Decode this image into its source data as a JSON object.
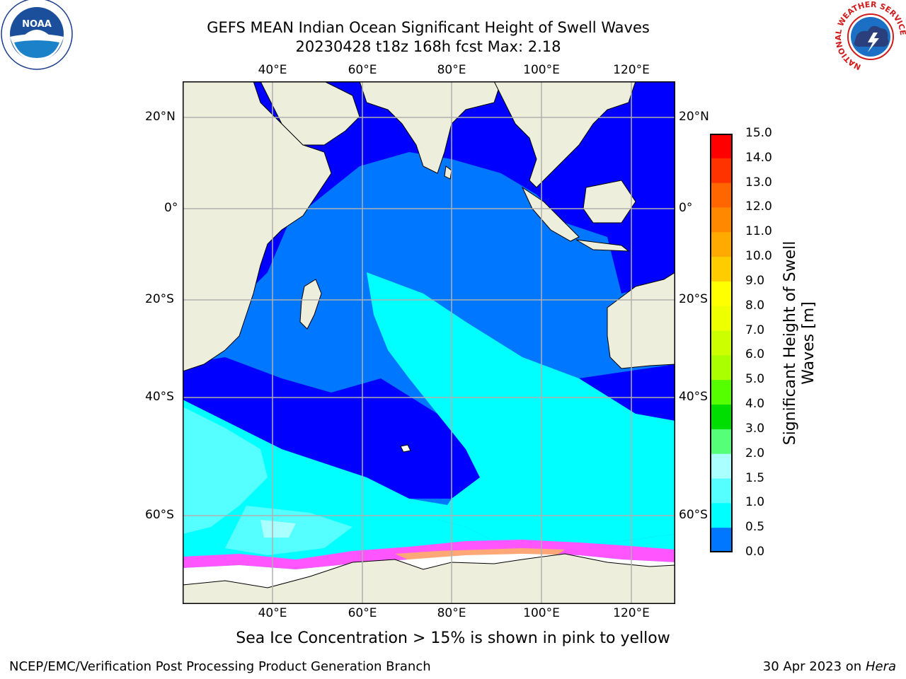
{
  "title": {
    "line1": "GEFS MEAN Indian Ocean Significant Height of Swell Waves",
    "line2": "20230428 t18z 168h fcst   Max: 2.18"
  },
  "logos": {
    "left": {
      "name": "noaa-logo",
      "text": "NOAA",
      "ring_text": "NATIONAL OCEANIC AND ATMOSPHERIC ADMINISTRATION · U.S. DEPARTMENT OF COMMERCE"
    },
    "right": {
      "name": "nws-logo",
      "ring_text": "NATIONAL WEATHER SERVICE"
    }
  },
  "map": {
    "lon_labels": [
      "40°E",
      "60°E",
      "80°E",
      "100°E",
      "120°E"
    ],
    "lat_labels_left": [
      "20°N",
      "0°",
      "20°S",
      "40°S",
      "60°S"
    ],
    "lat_labels_right": [
      "20°N",
      "0°",
      "20°S",
      "40°S",
      "60°S"
    ],
    "colors": {
      "land": "#eeeedd",
      "band_0_0_5": "#0000ff",
      "band_0_5_1_0": "#0077ff",
      "band_1_0_1_5": "#00ffff",
      "band_1_5_2_0": "#55ffff",
      "band_2_0_3_0": "#aaffff",
      "ice_pink": "#ff55ff",
      "ice_orange": "#ffbb55",
      "ice_white": "#ffffff",
      "grid": "#b0b0b0"
    }
  },
  "colorbar": {
    "label_line1": "Significant Height of Swell",
    "label_line2": "Waves [m]",
    "ticks": [
      "15.0",
      "14.0",
      "13.0",
      "12.0",
      "11.0",
      "10.0",
      "9.0",
      "8.0",
      "7.0",
      "6.0",
      "5.0",
      "4.0",
      "3.0",
      "2.0",
      "1.5",
      "1.0",
      "0.5",
      "0.0"
    ],
    "segment_colors": [
      "#ff0000",
      "#ff3300",
      "#ff6600",
      "#ff8800",
      "#ffaa00",
      "#ffcc00",
      "#ffff00",
      "#eeff00",
      "#ccff00",
      "#aaff00",
      "#55ff00",
      "#00dd00",
      "#55ff77",
      "#aaffff",
      "#55ffff",
      "#00ffff",
      "#0077ff",
      "#0000ff"
    ]
  },
  "footnote": "Sea Ice Concentration > 15% is shown in pink to yellow",
  "footer": {
    "left": "NCEP/EMC/Verification Post Processing Product Generation Branch",
    "right_prefix": "30 Apr 2023 on ",
    "right_host": "Hera"
  }
}
